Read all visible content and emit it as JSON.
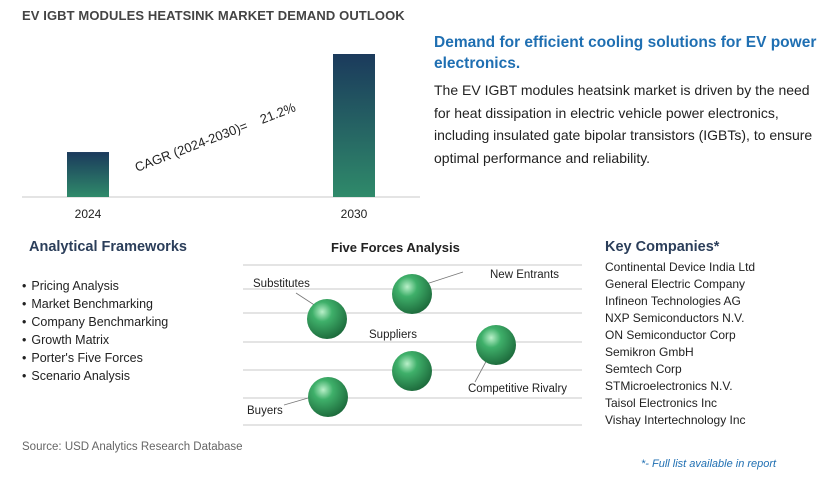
{
  "title": "EV IGBT MODULES HEATSINK MARKET DEMAND OUTLOOK",
  "chart_data": {
    "type": "bar",
    "categories": [
      "2024",
      "2030"
    ],
    "values": [
      1,
      3.18
    ],
    "annotation": "CAGR (2024-2030)=    21.2%"
  },
  "right_panel": {
    "heading": "Demand for efficient cooling solutions for EV power electronics.",
    "body": "The EV IGBT modules heatsink market is driven by the need for heat dissipation in electric vehicle power electronics, including insulated gate bipolar transistors (IGBTs), to ensure optimal performance and reliability."
  },
  "frameworks": {
    "title": "Analytical Frameworks",
    "items": [
      "Pricing Analysis",
      "Market Benchmarking",
      "Company Benchmarking",
      "Growth Matrix",
      "Porter's Five Forces",
      "Scenario Analysis"
    ]
  },
  "five_forces": {
    "title": "Five Forces Analysis",
    "labels": [
      "Substitutes",
      "New Entrants",
      "Suppliers",
      "Competitive Rivalry",
      "Buyers"
    ]
  },
  "companies": {
    "title": "Key Companies*",
    "items": [
      "Continental Device India Ltd",
      "General Electric Company",
      "Infineon Technologies AG",
      "NXP Semiconductors N.V.",
      "ON Semiconductor Corp",
      "Semikron GmbH",
      "Semtech Corp",
      "STMicroelectronics N.V.",
      "Taisol Electronics Inc",
      "Vishay Intertechnology Inc"
    ]
  },
  "source": "Source: USD Analytics Research Database",
  "footnote": "*- Full list available in report",
  "colors": {
    "bar_top": "#1b3a5c",
    "bar_bottom": "#2f8a6a",
    "accent": "#1f6fb2",
    "sphere": "#2e9a5a"
  }
}
